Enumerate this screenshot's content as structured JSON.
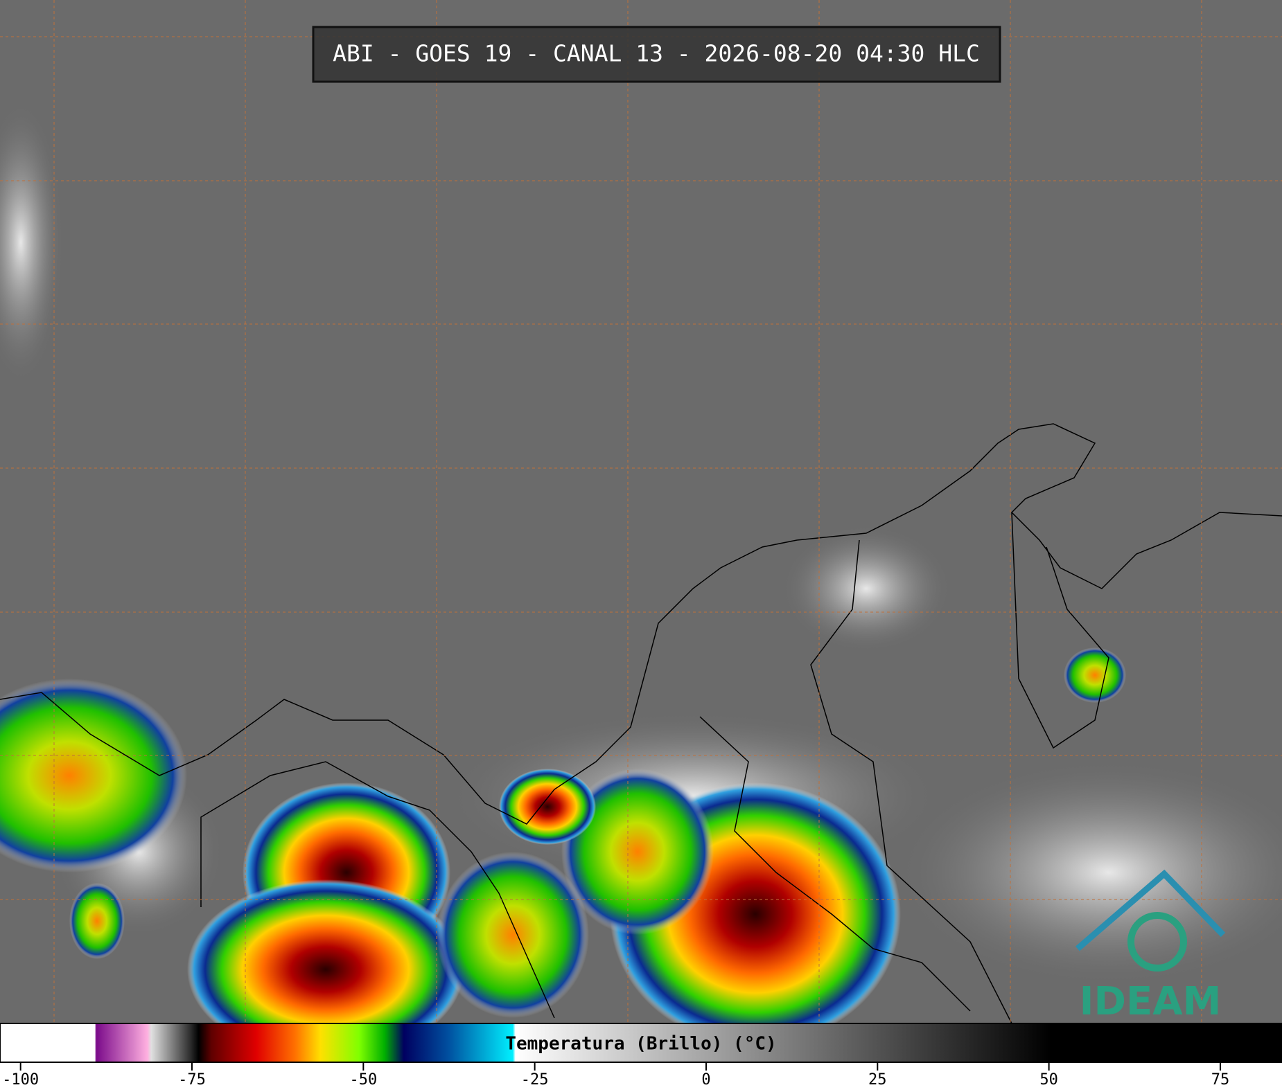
{
  "title": "ABI - GOES 19 - CANAL 13 - 2026-08-20 04:30 HLC",
  "logo": "IDEAM",
  "colorbar": {
    "label": "Temperatura (Brillo) (°C)",
    "xlim": [
      -103,
      84
    ],
    "xticks": [
      -100,
      -75,
      -50,
      -25,
      0,
      25,
      50,
      75
    ]
  }
}
